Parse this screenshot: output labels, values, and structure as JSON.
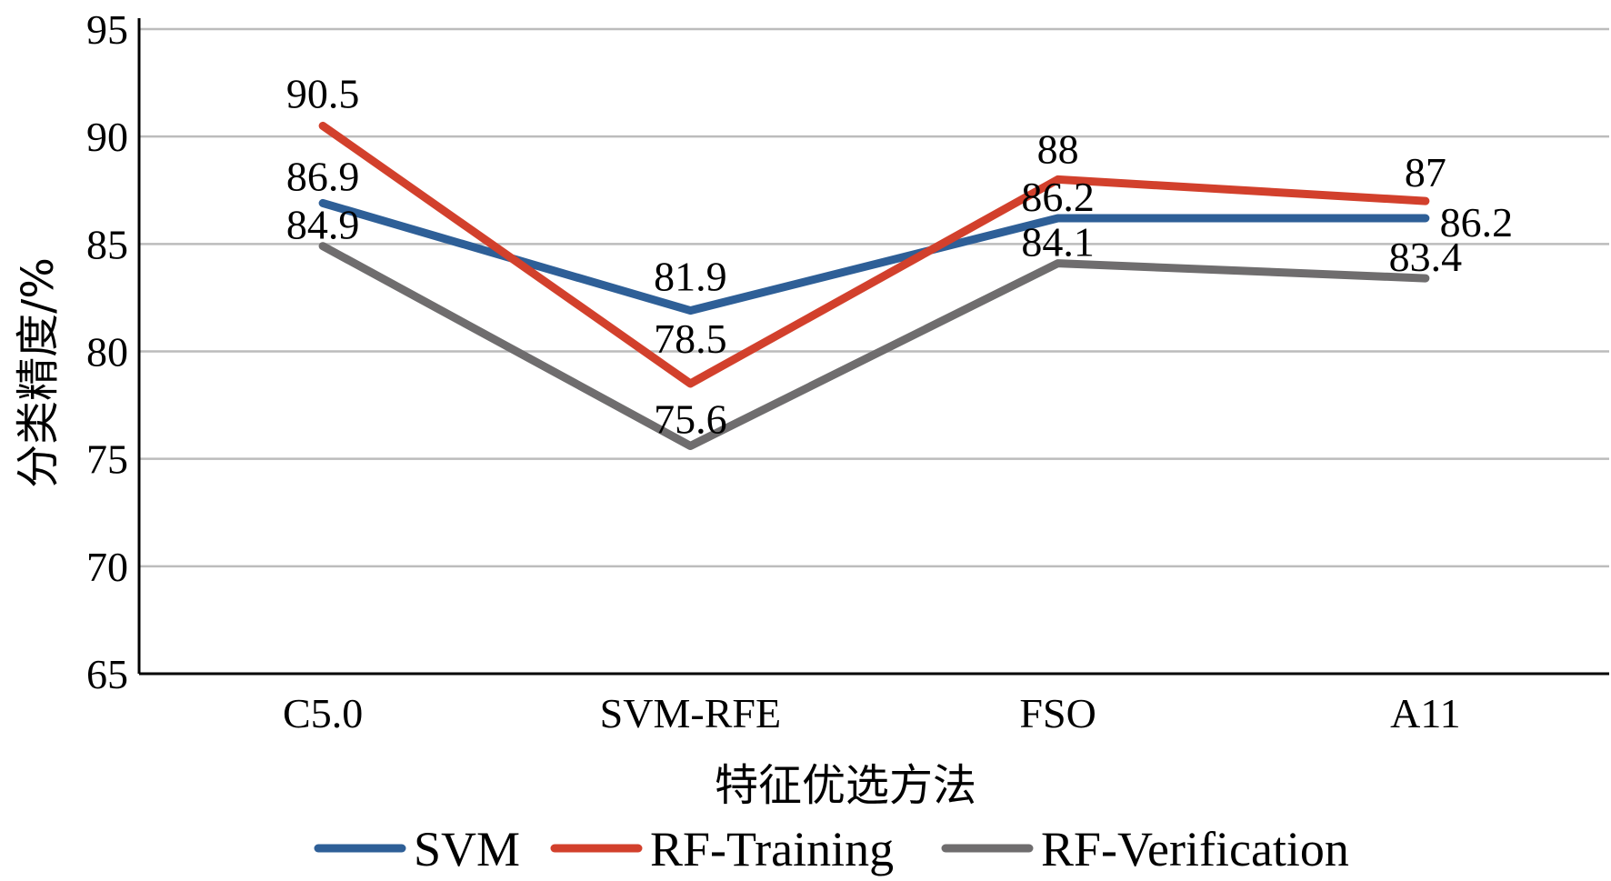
{
  "chart_data": {
    "type": "line",
    "categories": [
      "C5.0",
      "SVM-RFE",
      "FSO",
      "A11"
    ],
    "series": [
      {
        "name": "SVM",
        "values": [
          86.9,
          81.9,
          86.2,
          86.2
        ],
        "color": "#2e5f97"
      },
      {
        "name": "RF-Training",
        "values": [
          90.5,
          78.5,
          88,
          87
        ],
        "color": "#d2402c"
      },
      {
        "name": "RF-Verification",
        "values": [
          84.9,
          75.6,
          84.1,
          83.4
        ],
        "color": "#6f6d6e"
      }
    ],
    "title": "",
    "xlabel": "特征优选方法",
    "ylabel": "分类精度/%",
    "ylim": [
      65,
      95
    ],
    "yticks": [
      65,
      70,
      75,
      80,
      85,
      90,
      95
    ],
    "grid": true,
    "legend": "bottom"
  }
}
